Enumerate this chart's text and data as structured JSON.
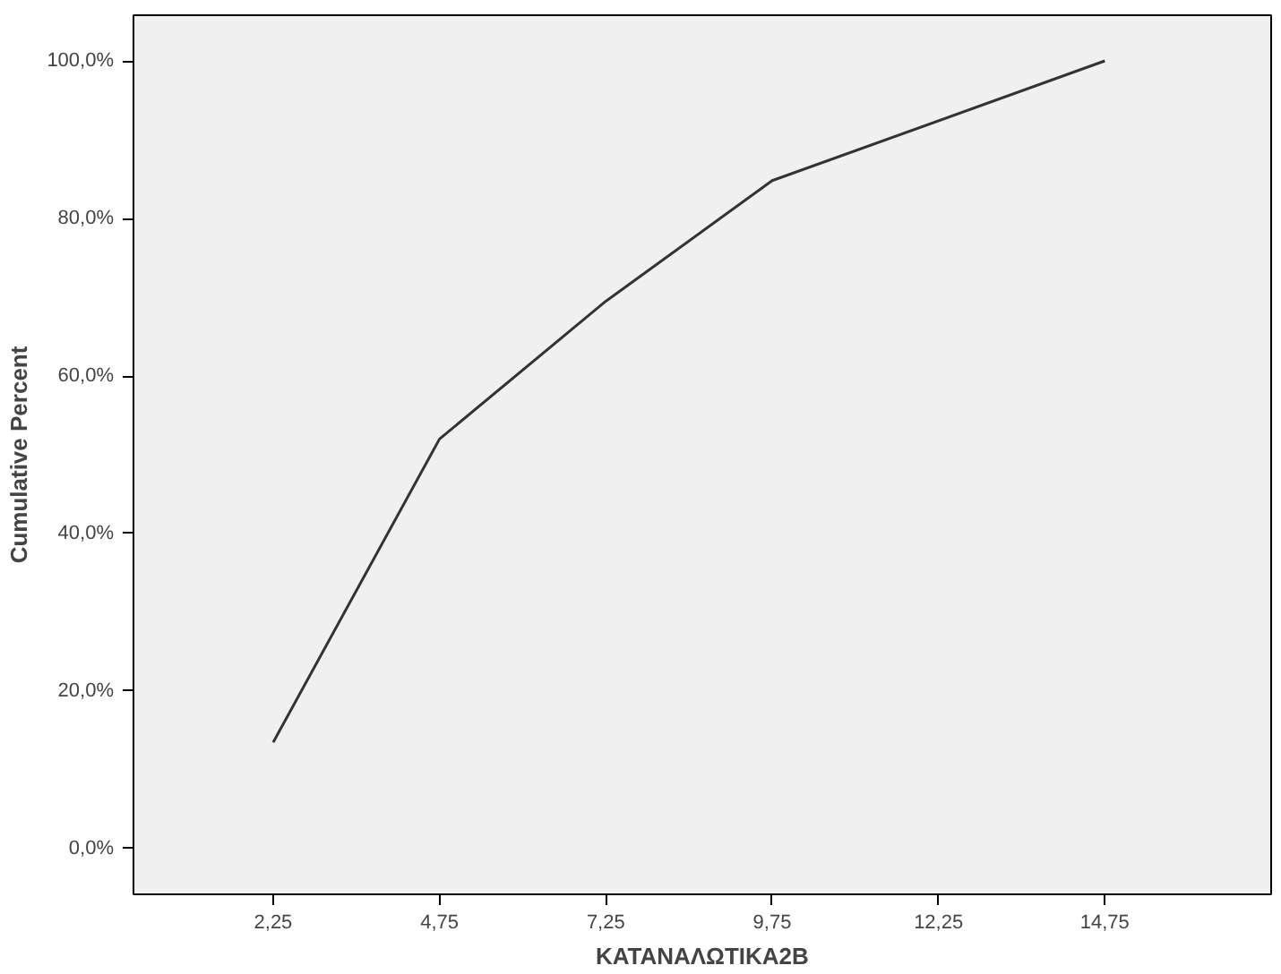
{
  "chart_data": {
    "type": "line",
    "xlabel": "ΚΑΤΑΝΑΛΩΤΙΚΑ2Β",
    "ylabel": "Cumulative Percent",
    "x": [
      2.25,
      4.75,
      7.25,
      9.75,
      14.75
    ],
    "series": [
      {
        "color": "#333333",
        "values": [
          13.5,
          52.0,
          69.5,
          84.8,
          100.0
        ]
      }
    ],
    "xlim": [
      0.15,
      17.25
    ],
    "ylim": [
      -5.8,
      105.8
    ],
    "xticks": [
      {
        "value": 2.25,
        "label": "2,25"
      },
      {
        "value": 4.75,
        "label": "4,75"
      },
      {
        "value": 7.25,
        "label": "7,25"
      },
      {
        "value": 9.75,
        "label": "9,75"
      },
      {
        "value": 12.25,
        "label": "12,25"
      },
      {
        "value": 14.75,
        "label": "14,75"
      }
    ],
    "yticks": [
      {
        "value": 0,
        "label": "0,0%"
      },
      {
        "value": 20,
        "label": "20,0%"
      },
      {
        "value": 40,
        "label": "40,0%"
      },
      {
        "value": 60,
        "label": "60,0%"
      },
      {
        "value": 80,
        "label": "80,0%"
      },
      {
        "value": 100,
        "label": "100,0%"
      }
    ],
    "grid": false,
    "marker": "none",
    "line_style": "solid"
  }
}
